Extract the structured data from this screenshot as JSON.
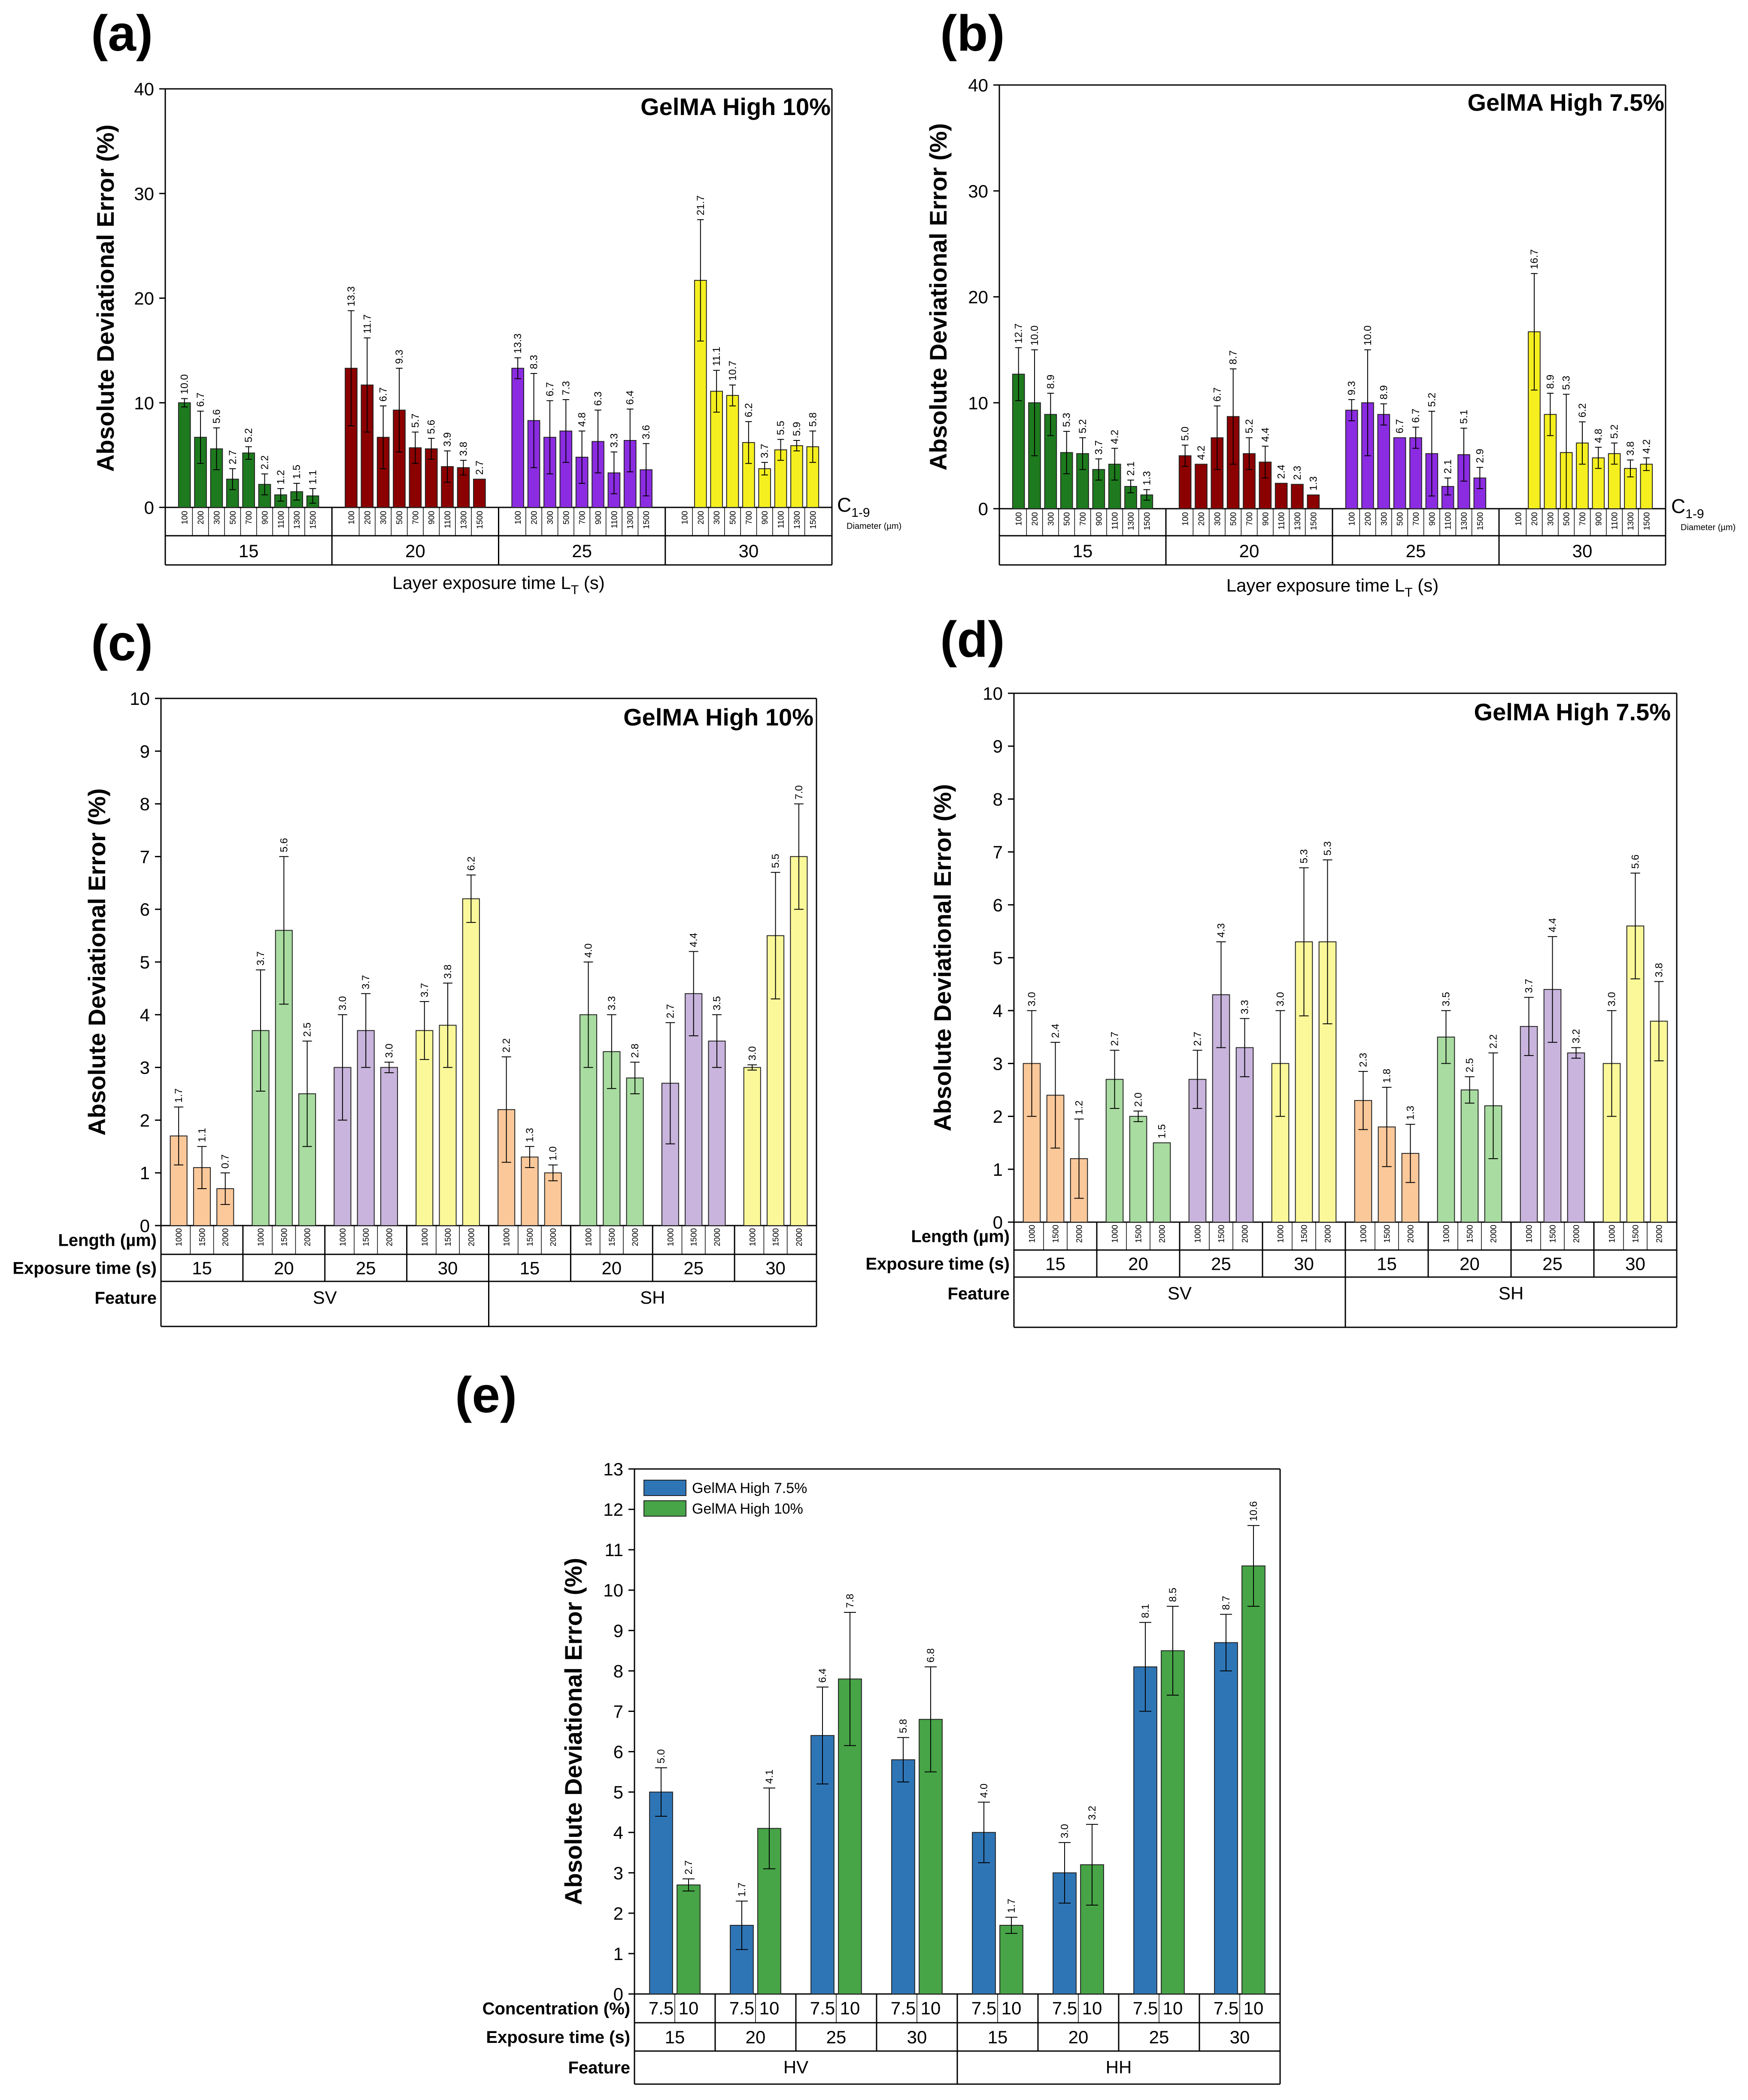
{
  "figure": {
    "panels": [
      "(a)",
      "(b)",
      "(c)",
      "(d)",
      "(e)"
    ]
  },
  "chart_data": [
    {
      "id": "a",
      "panel_label": "(a)",
      "type": "bar",
      "title": "GelMA High 10%",
      "ylabel": "Absolute Deviational Error (%)",
      "xlabel": "Layer exposure time L",
      "xlabel_sub": "T",
      "xlabel_suffix": " (s)",
      "ylim": [
        0,
        40
      ],
      "yticks": [
        0,
        10,
        20,
        30,
        40
      ],
      "end_note": "C",
      "end_note_sub": "1-9",
      "end_note_small": "Diameter (µm)",
      "groups": [
        {
          "label": "15",
          "color": "#1e7a1e",
          "categories": [
            "100",
            "200",
            "300",
            "500",
            "700",
            "900",
            "1100",
            "1300",
            "1500"
          ],
          "values": [
            10.0,
            6.7,
            5.6,
            2.7,
            5.2,
            2.2,
            1.2,
            1.5,
            1.1
          ],
          "errors": [
            0.4,
            2.5,
            2.0,
            1.0,
            0.6,
            1.0,
            0.6,
            0.8,
            0.7
          ]
        },
        {
          "label": "20",
          "color": "#8b0000",
          "categories": [
            "100",
            "200",
            "300",
            "500",
            "700",
            "900",
            "1100",
            "1300",
            "1500"
          ],
          "values": [
            13.3,
            11.7,
            6.7,
            9.3,
            5.7,
            5.6,
            3.9,
            3.8,
            2.7
          ],
          "errors": [
            5.5,
            4.5,
            3.0,
            4.0,
            1.5,
            1.0,
            1.5,
            0.7,
            0.0
          ]
        },
        {
          "label": "25",
          "color": "#8b2be2",
          "categories": [
            "100",
            "200",
            "300",
            "500",
            "700",
            "900",
            "1100",
            "1300",
            "1500"
          ],
          "values": [
            13.3,
            8.3,
            6.7,
            7.3,
            4.8,
            6.3,
            3.3,
            6.4,
            3.6
          ],
          "errors": [
            1.0,
            4.5,
            3.5,
            3.0,
            2.5,
            3.0,
            2.0,
            3.0,
            2.5
          ]
        },
        {
          "label": "30",
          "color": "#f5ef1f",
          "categories": [
            "100",
            "200",
            "300",
            "500",
            "700",
            "900",
            "1100",
            "1300",
            "1500"
          ],
          "values": [
            null,
            21.7,
            11.1,
            10.7,
            6.2,
            3.7,
            5.5,
            5.9,
            5.8
          ],
          "errors": [
            0,
            5.8,
            2.0,
            1.0,
            2.0,
            0.6,
            1.0,
            0.5,
            1.5
          ]
        }
      ],
      "data_labels": [
        [
          "10.0",
          "6.7",
          "5.6",
          "2.7",
          "5.2",
          "2.2",
          "1.2",
          "1.5",
          "1.1"
        ],
        [
          "13.3",
          "11.7",
          "6.7",
          "9.3",
          "5.7",
          "5.6",
          "3.9",
          "3.8",
          "2.7"
        ],
        [
          "13.3",
          "8.3",
          "6.7",
          "7.3",
          "4.8",
          "6.3",
          "3.3",
          "6.4",
          "3.6"
        ],
        [
          "",
          "21.7",
          "11.1",
          "10.7",
          "6.2",
          "3.7",
          "5.5",
          "5.9",
          "5.8"
        ]
      ]
    },
    {
      "id": "b",
      "panel_label": "(b)",
      "type": "bar",
      "title": "GelMA High 7.5%",
      "ylabel": "Absolute Deviational Error (%)",
      "xlabel": "Layer exposure time L",
      "xlabel_sub": "T",
      "xlabel_suffix": " (s)",
      "ylim": [
        0,
        40
      ],
      "yticks": [
        0,
        10,
        20,
        30,
        40
      ],
      "end_note": "C",
      "end_note_sub": "1-9",
      "end_note_small": "Diameter (µm)",
      "groups": [
        {
          "label": "15",
          "color": "#1e7a1e",
          "categories": [
            "100",
            "200",
            "300",
            "500",
            "700",
            "900",
            "1100",
            "1300",
            "1500"
          ],
          "values": [
            12.7,
            10.0,
            8.9,
            5.3,
            5.2,
            3.7,
            4.2,
            2.1,
            1.3
          ],
          "errors": [
            2.5,
            5.0,
            2.0,
            2.0,
            1.5,
            1.0,
            1.5,
            0.6,
            0.5
          ]
        },
        {
          "label": "20",
          "color": "#8b0000",
          "categories": [
            "100",
            "200",
            "300",
            "500",
            "700",
            "900",
            "1100",
            "1300",
            "1500"
          ],
          "values": [
            5.0,
            4.2,
            6.7,
            8.7,
            5.2,
            4.4,
            2.4,
            2.3,
            1.3
          ],
          "errors": [
            1.0,
            0.0,
            3.0,
            4.5,
            1.5,
            1.5,
            0.0,
            0.0,
            0.0
          ]
        },
        {
          "label": "25",
          "color": "#8b2be2",
          "categories": [
            "100",
            "200",
            "300",
            "500",
            "700",
            "900",
            "1100",
            "1300",
            "1500"
          ],
          "values": [
            9.3,
            10.0,
            8.9,
            6.7,
            6.7,
            5.2,
            2.1,
            5.1,
            2.9
          ],
          "errors": [
            1.0,
            5.0,
            1.0,
            0.0,
            1.0,
            4.0,
            0.8,
            2.5,
            1.0
          ]
        },
        {
          "label": "30",
          "color": "#f5ef1f",
          "categories": [
            "100",
            "200",
            "300",
            "500",
            "700",
            "900",
            "1100",
            "1300",
            "1500"
          ],
          "values": [
            null,
            16.7,
            8.9,
            5.3,
            6.2,
            4.8,
            5.2,
            3.8,
            4.2
          ],
          "errors": [
            0,
            5.5,
            2.0,
            5.5,
            2.0,
            1.0,
            1.0,
            0.8,
            0.6
          ]
        }
      ],
      "data_labels": [
        [
          "12.7",
          "10.0",
          "8.9",
          "5.3",
          "5.2",
          "3.7",
          "4.2",
          "2.1",
          "1.3"
        ],
        [
          "5.0",
          "4.2",
          "6.7",
          "8.7",
          "5.2",
          "4.4",
          "2.4",
          "2.3",
          "1.3"
        ],
        [
          "9.3",
          "10.0",
          "8.9",
          "6.7",
          "6.7",
          "5.2",
          "2.1",
          "5.1",
          "2.9"
        ],
        [
          "",
          "16.7",
          "8.9",
          "5.3",
          "6.2",
          "4.8",
          "5.2",
          "3.8",
          "4.2"
        ]
      ]
    },
    {
      "id": "c",
      "panel_label": "(c)",
      "type": "bar",
      "title": "GelMA High 10%",
      "ylabel": "Absolute Deviational Error (%)",
      "ylim": [
        0,
        10
      ],
      "yticks": [
        0,
        1,
        2,
        3,
        4,
        5,
        6,
        7,
        8,
        9,
        10
      ],
      "row_labels": [
        "Length (µm)",
        "Exposure time (s)",
        "Feature"
      ],
      "features": [
        "SV",
        "SH"
      ],
      "groups": [
        {
          "label": "15",
          "color": "#fbc89a",
          "categories": [
            "1000",
            "1500",
            "2000"
          ],
          "values": [
            1.7,
            1.1,
            0.7
          ],
          "errors": [
            0.55,
            0.4,
            0.3
          ]
        },
        {
          "label": "20",
          "color": "#a8dca0",
          "categories": [
            "1000",
            "1500",
            "2000"
          ],
          "values": [
            3.7,
            5.6,
            2.5
          ],
          "errors": [
            1.15,
            1.4,
            1.0
          ]
        },
        {
          "label": "25",
          "color": "#c8b4dc",
          "categories": [
            "1000",
            "1500",
            "2000"
          ],
          "values": [
            3.0,
            3.7,
            3.0
          ],
          "errors": [
            1.0,
            0.7,
            0.1
          ]
        },
        {
          "label": "30",
          "color": "#fbf89a",
          "categories": [
            "1000",
            "1500",
            "2000"
          ],
          "values": [
            3.7,
            3.8,
            6.2
          ],
          "errors": [
            0.55,
            0.8,
            0.45
          ]
        },
        {
          "label": "15",
          "color": "#fbc89a",
          "categories": [
            "1000",
            "1500",
            "2000"
          ],
          "values": [
            2.2,
            1.3,
            1.0
          ],
          "errors": [
            1.0,
            0.2,
            0.15
          ]
        },
        {
          "label": "20",
          "color": "#a8dca0",
          "categories": [
            "1000",
            "1500",
            "2000"
          ],
          "values": [
            4.0,
            3.3,
            2.8
          ],
          "errors": [
            1.0,
            0.7,
            0.3
          ]
        },
        {
          "label": "25",
          "color": "#c8b4dc",
          "categories": [
            "1000",
            "1500",
            "2000"
          ],
          "values": [
            2.7,
            4.4,
            3.5
          ],
          "errors": [
            1.15,
            0.8,
            0.5
          ]
        },
        {
          "label": "30",
          "color": "#fbf89a",
          "categories": [
            "1000",
            "1500",
            "2000"
          ],
          "values": [
            3.0,
            5.5,
            7.0
          ],
          "errors": [
            0.05,
            1.2,
            1.0
          ]
        }
      ],
      "data_labels": [
        [
          "1.7",
          "1.1",
          "0.7"
        ],
        [
          "3.7",
          "5.6",
          "2.5"
        ],
        [
          "3.0",
          "3.7",
          "3.0"
        ],
        [
          "3.7",
          "3.8",
          "6.2"
        ],
        [
          "2.2",
          "1.3",
          "1.0"
        ],
        [
          "4.0",
          "3.3",
          "2.8"
        ],
        [
          "2.7",
          "4.4",
          "3.5"
        ],
        [
          "3.0",
          "5.5",
          "7.0"
        ]
      ]
    },
    {
      "id": "d",
      "panel_label": "(d)",
      "type": "bar",
      "title": "GelMA High 7.5%",
      "ylabel": "Absolute Deviational Error (%)",
      "ylim": [
        0,
        10
      ],
      "yticks": [
        0,
        1,
        2,
        3,
        4,
        5,
        6,
        7,
        8,
        9,
        10
      ],
      "row_labels": [
        "Length (µm)",
        "Exposure time (s)",
        "Feature"
      ],
      "features": [
        "SV",
        "SH"
      ],
      "groups": [
        {
          "label": "15",
          "color": "#fbc89a",
          "categories": [
            "1000",
            "1500",
            "2000"
          ],
          "values": [
            3.0,
            2.4,
            1.2
          ],
          "errors": [
            1.0,
            1.0,
            0.75
          ]
        },
        {
          "label": "20",
          "color": "#a8dca0",
          "categories": [
            "1000",
            "1500",
            "2000"
          ],
          "values": [
            2.7,
            2.0,
            1.5
          ],
          "errors": [
            0.55,
            0.1,
            0.0
          ]
        },
        {
          "label": "25",
          "color": "#c8b4dc",
          "categories": [
            "1000",
            "1500",
            "2000"
          ],
          "values": [
            2.7,
            4.3,
            3.3
          ],
          "errors": [
            0.55,
            1.0,
            0.55
          ]
        },
        {
          "label": "30",
          "color": "#fbf89a",
          "categories": [
            "1000",
            "1500",
            "2000"
          ],
          "values": [
            3.0,
            5.3,
            5.3
          ],
          "errors": [
            1.0,
            1.4,
            1.55
          ]
        },
        {
          "label": "15",
          "color": "#fbc89a",
          "categories": [
            "1000",
            "1500",
            "2000"
          ],
          "values": [
            2.3,
            1.8,
            1.3
          ],
          "errors": [
            0.55,
            0.75,
            0.55
          ]
        },
        {
          "label": "20",
          "color": "#a8dca0",
          "categories": [
            "1000",
            "1500",
            "2000"
          ],
          "values": [
            3.5,
            2.5,
            2.2
          ],
          "errors": [
            0.5,
            0.25,
            1.0
          ]
        },
        {
          "label": "25",
          "color": "#c8b4dc",
          "categories": [
            "1000",
            "1500",
            "2000"
          ],
          "values": [
            3.7,
            4.4,
            3.2
          ],
          "errors": [
            0.55,
            1.0,
            0.1
          ]
        },
        {
          "label": "30",
          "color": "#fbf89a",
          "categories": [
            "1000",
            "1500",
            "2000"
          ],
          "values": [
            3.0,
            5.6,
            3.8
          ],
          "errors": [
            1.0,
            1.0,
            0.75
          ]
        }
      ],
      "data_labels": [
        [
          "3.0",
          "2.4",
          "1.2"
        ],
        [
          "2.7",
          "2.0",
          "1.5"
        ],
        [
          "2.7",
          "4.3",
          "3.3"
        ],
        [
          "3.0",
          "5.3",
          "5.3"
        ],
        [
          "2.3",
          "1.8",
          "1.3"
        ],
        [
          "3.5",
          "2.5",
          "2.2"
        ],
        [
          "3.7",
          "4.4",
          "3.2"
        ],
        [
          "3.0",
          "5.6",
          "3.8"
        ]
      ]
    },
    {
      "id": "e",
      "panel_label": "(e)",
      "type": "bar",
      "title": "",
      "ylabel": "Absolute Deviational Error (%)",
      "ylim": [
        0,
        13
      ],
      "yticks": [
        0,
        1,
        2,
        3,
        4,
        5,
        6,
        7,
        8,
        9,
        10,
        11,
        12,
        13
      ],
      "row_labels": [
        "Concentration (%)",
        "Exposure time (s)",
        "Feature"
      ],
      "features": [
        "HV",
        "HH"
      ],
      "legend": [
        {
          "name": "GelMA High 7.5%",
          "color": "#2e75b6"
        },
        {
          "name": "GelMA High 10%",
          "color": "#47a447"
        }
      ],
      "groups": [
        {
          "label": "15",
          "categories": [
            "7.5",
            "10"
          ],
          "colors": [
            "#2e75b6",
            "#47a447"
          ],
          "values": [
            5.0,
            2.7
          ],
          "errors": [
            0.6,
            0.15
          ]
        },
        {
          "label": "20",
          "categories": [
            "7.5",
            "10"
          ],
          "colors": [
            "#2e75b6",
            "#47a447"
          ],
          "values": [
            1.7,
            4.1
          ],
          "errors": [
            0.6,
            1.0
          ]
        },
        {
          "label": "25",
          "categories": [
            "7.5",
            "10"
          ],
          "colors": [
            "#2e75b6",
            "#47a447"
          ],
          "values": [
            6.4,
            7.8
          ],
          "errors": [
            1.2,
            1.65
          ]
        },
        {
          "label": "30",
          "categories": [
            "7.5",
            "10"
          ],
          "colors": [
            "#2e75b6",
            "#47a447"
          ],
          "values": [
            5.8,
            6.8
          ],
          "errors": [
            0.55,
            1.3
          ]
        },
        {
          "label": "15",
          "categories": [
            "7.5",
            "10"
          ],
          "colors": [
            "#2e75b6",
            "#47a447"
          ],
          "values": [
            4.0,
            1.7
          ],
          "errors": [
            0.75,
            0.2
          ]
        },
        {
          "label": "20",
          "categories": [
            "7.5",
            "10"
          ],
          "colors": [
            "#2e75b6",
            "#47a447"
          ],
          "values": [
            3.0,
            3.2
          ],
          "errors": [
            0.75,
            1.0
          ]
        },
        {
          "label": "25",
          "categories": [
            "7.5",
            "10"
          ],
          "colors": [
            "#2e75b6",
            "#47a447"
          ],
          "values": [
            8.1,
            8.5
          ],
          "errors": [
            1.1,
            1.1
          ]
        },
        {
          "label": "30",
          "categories": [
            "7.5",
            "10"
          ],
          "colors": [
            "#2e75b6",
            "#47a447"
          ],
          "values": [
            8.7,
            10.6
          ],
          "errors": [
            0.7,
            1.0
          ]
        }
      ],
      "data_labels": [
        [
          "5.0",
          "2.7"
        ],
        [
          "1.7",
          "4.1"
        ],
        [
          "6.4",
          "7.8"
        ],
        [
          "5.8",
          "6.8"
        ],
        [
          "4.0",
          "1.7"
        ],
        [
          "3.0",
          "3.2"
        ],
        [
          "8.1",
          "8.5"
        ],
        [
          "8.7",
          "10.6"
        ]
      ]
    }
  ]
}
